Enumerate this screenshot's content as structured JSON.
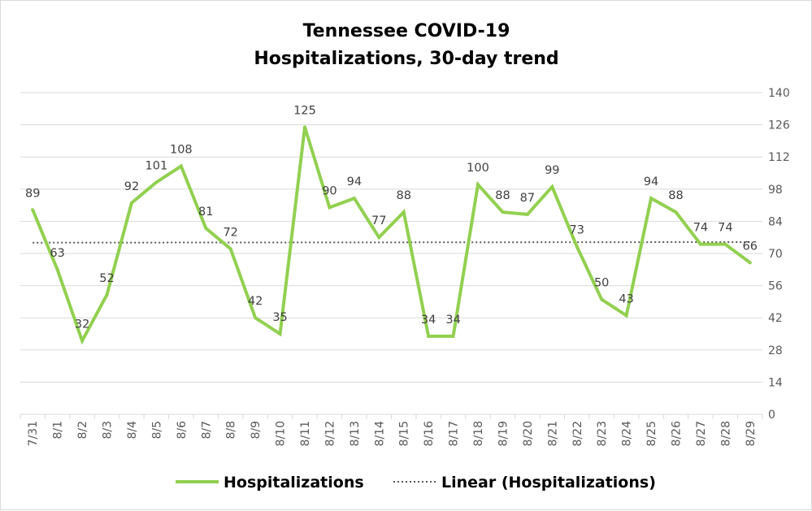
{
  "chart_data": {
    "type": "line",
    "title_lines": [
      "Tennessee COVID-19",
      "Hospitalizations, 30-day trend"
    ],
    "categories": [
      "7/31",
      "8/1",
      "8/2",
      "8/3",
      "8/4",
      "8/5",
      "8/6",
      "8/7",
      "8/8",
      "8/9",
      "8/10",
      "8/11",
      "8/12",
      "8/13",
      "8/14",
      "8/15",
      "8/16",
      "8/17",
      "8/18",
      "8/19",
      "8/20",
      "8/21",
      "8/22",
      "8/23",
      "8/24",
      "8/25",
      "8/26",
      "8/27",
      "8/28",
      "8/29"
    ],
    "series": [
      {
        "name": "Hospitalizations",
        "color": "#92d050",
        "values": [
          89,
          63,
          32,
          52,
          92,
          101,
          108,
          81,
          72,
          42,
          35,
          125,
          90,
          94,
          77,
          88,
          34,
          34,
          100,
          88,
          87,
          99,
          73,
          50,
          43,
          94,
          88,
          74,
          74,
          66
        ]
      }
    ],
    "trendline": {
      "name": "Linear (Hospitalizations)",
      "type": "linear",
      "color": "#595959",
      "style": "dotted"
    },
    "y_axis": {
      "position": "right",
      "ylim": [
        0,
        140
      ],
      "ticks": [
        0,
        14,
        28,
        42,
        56,
        70,
        84,
        98,
        112,
        126,
        140
      ]
    },
    "grid": {
      "horizontal": true,
      "color": "#d9d9d9"
    },
    "legend": {
      "position": "bottom"
    },
    "data_labels": true
  }
}
